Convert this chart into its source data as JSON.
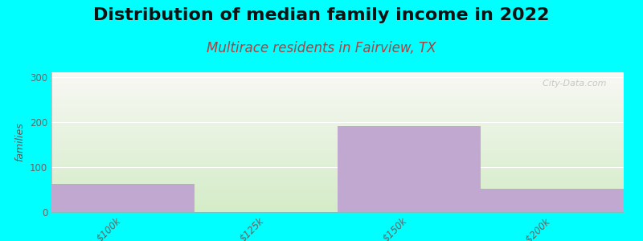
{
  "title": "Distribution of median family income in 2022",
  "subtitle": "Multirace residents in Fairview, TX",
  "categories": [
    "$100k",
    "$125k",
    "$150k",
    ">$200k"
  ],
  "bar_values": [
    62,
    0,
    190,
    52
  ],
  "bar_color": "#c0a8d0",
  "background_color": "#00ffff",
  "plot_bg_top": "#f8f8f4",
  "plot_bg_bottom": "#d4ecc8",
  "ylabel": "families",
  "ylim": [
    0,
    310
  ],
  "yticks": [
    0,
    100,
    200,
    300
  ],
  "watermark": "  City-Data.com",
  "title_fontsize": 16,
  "title_fontweight": "bold",
  "subtitle_fontsize": 12,
  "subtitle_color": "#b04040",
  "grid_color": "#e0e0e0",
  "tick_color": "#666666",
  "tick_fontsize": 8.5
}
